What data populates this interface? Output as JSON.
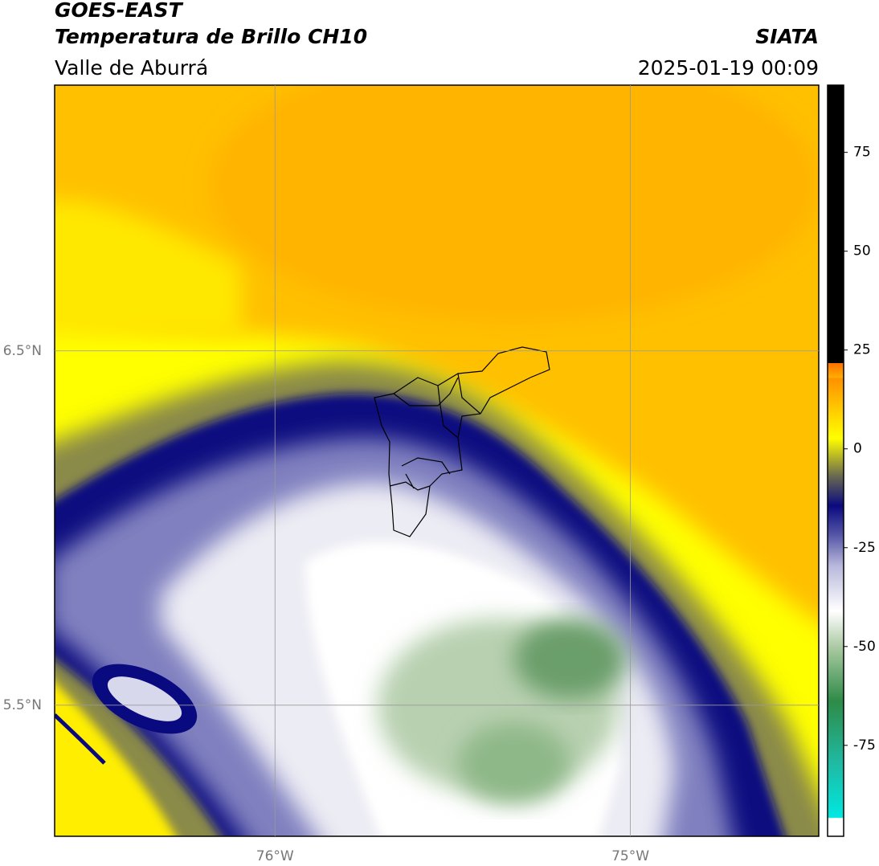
{
  "header": {
    "title": "GOES-EAST",
    "subtitle": "Temperatura de Brillo CH10",
    "region": "Valle de Aburrá",
    "source": "SIATA",
    "timestamp": "2025-01-19 00:09"
  },
  "map": {
    "xlim": [
      -76.62,
      -74.47
    ],
    "ylim": [
      5.13,
      7.25
    ],
    "xticks": [
      {
        "value": -76,
        "label": "76°W"
      },
      {
        "value": -75,
        "label": "75°W"
      }
    ],
    "yticks": [
      {
        "value": 6.5,
        "label": "6.5°N"
      },
      {
        "value": 5.5,
        "label": "5.5°N"
      }
    ]
  },
  "colorbar": {
    "lim": [
      -98,
      92
    ],
    "ticks": [
      75,
      50,
      25,
      0,
      -25,
      -50,
      -75
    ]
  }
}
